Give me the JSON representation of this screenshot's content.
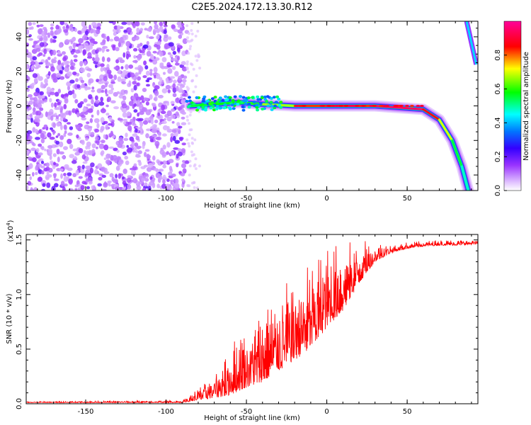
{
  "figure": {
    "title": "C2E5.2024.172.13.30.R12"
  },
  "chart_data": [
    {
      "type": "heatmap",
      "xlabel": "Height of straight line (km)",
      "ylabel": "Frequency (Hz)",
      "xlim": [
        -187,
        94
      ],
      "ylim": [
        -49,
        49
      ],
      "x_ticks": [
        -150,
        -100,
        -50,
        0,
        50
      ],
      "y_ticks": [
        -40,
        -20,
        0,
        20,
        40
      ],
      "colorbar": {
        "label": "Normalized spectral amplitude",
        "range": [
          0,
          1
        ],
        "ticks": [
          "0.0",
          "0.2",
          "0.4",
          "0.6",
          "0.8"
        ]
      },
      "colors": [
        "#ffffff",
        "#e6ccff",
        "#cc99ff",
        "#8a2be2",
        "#0000ff",
        "#00ffff",
        "#00ff00",
        "#ffff00",
        "#ff0000",
        "#ff00aa"
      ],
      "features": {
        "noise_region_x": [
          -187,
          -87
        ],
        "tone": [
          {
            "x": -85,
            "y": 0,
            "amp": 0.55
          },
          {
            "x": -70,
            "y": 1,
            "amp": 0.55
          },
          {
            "x": -55,
            "y": 2,
            "amp": 0.6
          },
          {
            "x": -40,
            "y": 1,
            "amp": 0.6
          },
          {
            "x": -20,
            "y": 0,
            "amp": 0.75
          },
          {
            "x": 0,
            "y": 0,
            "amp": 0.9
          },
          {
            "x": 30,
            "y": 0,
            "amp": 0.95
          },
          {
            "x": 60,
            "y": -2,
            "amp": 0.95
          },
          {
            "x": 70,
            "y": -8,
            "amp": 0.8
          },
          {
            "x": 78,
            "y": -20,
            "amp": 0.6
          },
          {
            "x": 84,
            "y": -35,
            "amp": 0.5
          },
          {
            "x": 88,
            "y": -49,
            "amp": 0.45
          }
        ],
        "upper_tone": [
          {
            "x": 87,
            "y": 49
          },
          {
            "x": 93,
            "y": 24
          }
        ]
      }
    },
    {
      "type": "line",
      "xlabel": "Height of straight line (km)",
      "ylabel": "SNR (10 * v/v)",
      "y_multiplier": "(x10",
      "y_multiplier_exp": "4",
      "y_multiplier_close": ")",
      "xlim": [
        -187,
        94
      ],
      "ylim": [
        0,
        1.55
      ],
      "x_ticks": [
        -150,
        -100,
        -50,
        0,
        50
      ],
      "y_ticks": [
        "0.0",
        "0.5",
        "1.0",
        "1.5"
      ],
      "line_color": "#ff0000",
      "envelope": {
        "x": [
          -187,
          -90,
          -80,
          -70,
          -60,
          -50,
          -40,
          -30,
          -20,
          -10,
          0,
          10,
          20,
          30,
          40,
          50,
          60,
          70,
          80,
          94
        ],
        "low": [
          0.01,
          0.01,
          0.03,
          0.05,
          0.08,
          0.15,
          0.2,
          0.3,
          0.4,
          0.5,
          0.7,
          0.85,
          1.1,
          1.3,
          1.38,
          1.42,
          1.44,
          1.45,
          1.45,
          1.46
        ],
        "high": [
          0.02,
          0.03,
          0.15,
          0.3,
          0.55,
          0.75,
          0.85,
          1.05,
          1.2,
          1.3,
          1.45,
          1.48,
          1.5,
          1.48,
          1.47,
          1.48,
          1.49,
          1.5,
          1.5,
          1.5
        ]
      }
    }
  ]
}
